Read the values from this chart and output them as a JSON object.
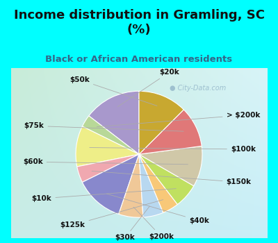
{
  "title": "Income distribution in Gramling, SC\n(%)",
  "subtitle": "Black or African American residents",
  "labels": [
    "$20k",
    "> $200k",
    "$100k",
    "$150k",
    "$40k",
    "$200k",
    "$30k",
    "$125k",
    "$10k",
    "$60k",
    "$75k",
    "$50k"
  ],
  "values": [
    14,
    3,
    10,
    4,
    12,
    6,
    5,
    4,
    6,
    10,
    10,
    12
  ],
  "colors": [
    "#a898cc",
    "#b8d898",
    "#eeee88",
    "#f0a8b0",
    "#8888cc",
    "#f0c898",
    "#b8d8f0",
    "#f8c878",
    "#c0e060",
    "#d0c8a8",
    "#e07878",
    "#c8a830"
  ],
  "startangle": 90,
  "label_fontsize": 7.5,
  "title_fontsize": 13,
  "subtitle_fontsize": 9.5,
  "title_color": "#111111",
  "subtitle_color": "#336688",
  "header_bg": "#00ffff",
  "outer_bg": "#00ffff",
  "chart_bg_tl": "#c8ecd8",
  "chart_bg_br": "#c8eef8",
  "watermark": "City-Data.com",
  "watermark_color": "#99bbcc",
  "border_cyan": "#00ffff"
}
